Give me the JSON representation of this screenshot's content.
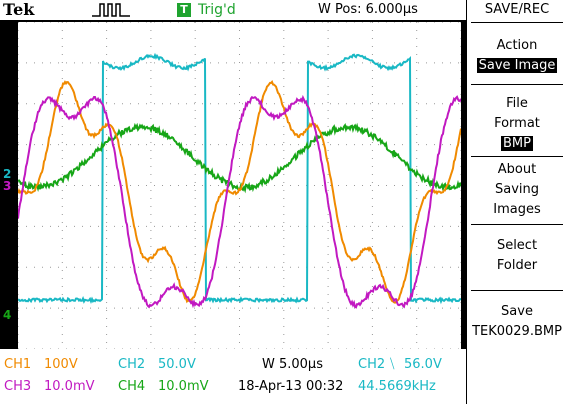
{
  "brand": "Tek",
  "trigger": {
    "badge": "T",
    "status": "Trig'd"
  },
  "wpos": "W Pos: 6.000µs",
  "menu": {
    "title": "SAVE/REC",
    "items": [
      {
        "label": "Action",
        "value": "Save Image"
      },
      {
        "label": "File Format",
        "value": "BMP"
      },
      {
        "label": "About Saving Images"
      },
      {
        "label": "Select Folder"
      },
      {
        "label": "Save",
        "value": "TEK0029.BMP"
      }
    ]
  },
  "channels": {
    "ch1": {
      "name": "CH1",
      "scale": "100V",
      "color": "#f08a00"
    },
    "ch2": {
      "name": "CH2",
      "scale": "50.0V",
      "color": "#19b8c4"
    },
    "ch3": {
      "name": "CH3",
      "scale": "10.0mV",
      "color": "#c119c1"
    },
    "ch4": {
      "name": "CH4",
      "scale": "10.0mV",
      "color": "#17a617"
    }
  },
  "timebase": "W 5.00µs",
  "date": "18-Apr-13 00:32",
  "trigger_readout": {
    "channel": "CH2",
    "slope": "⧹",
    "level": "56.0V"
  },
  "frequency": "44.5669kHz",
  "markers": {
    "ch2": "2",
    "ch3": "3",
    "ch4": "4"
  }
}
